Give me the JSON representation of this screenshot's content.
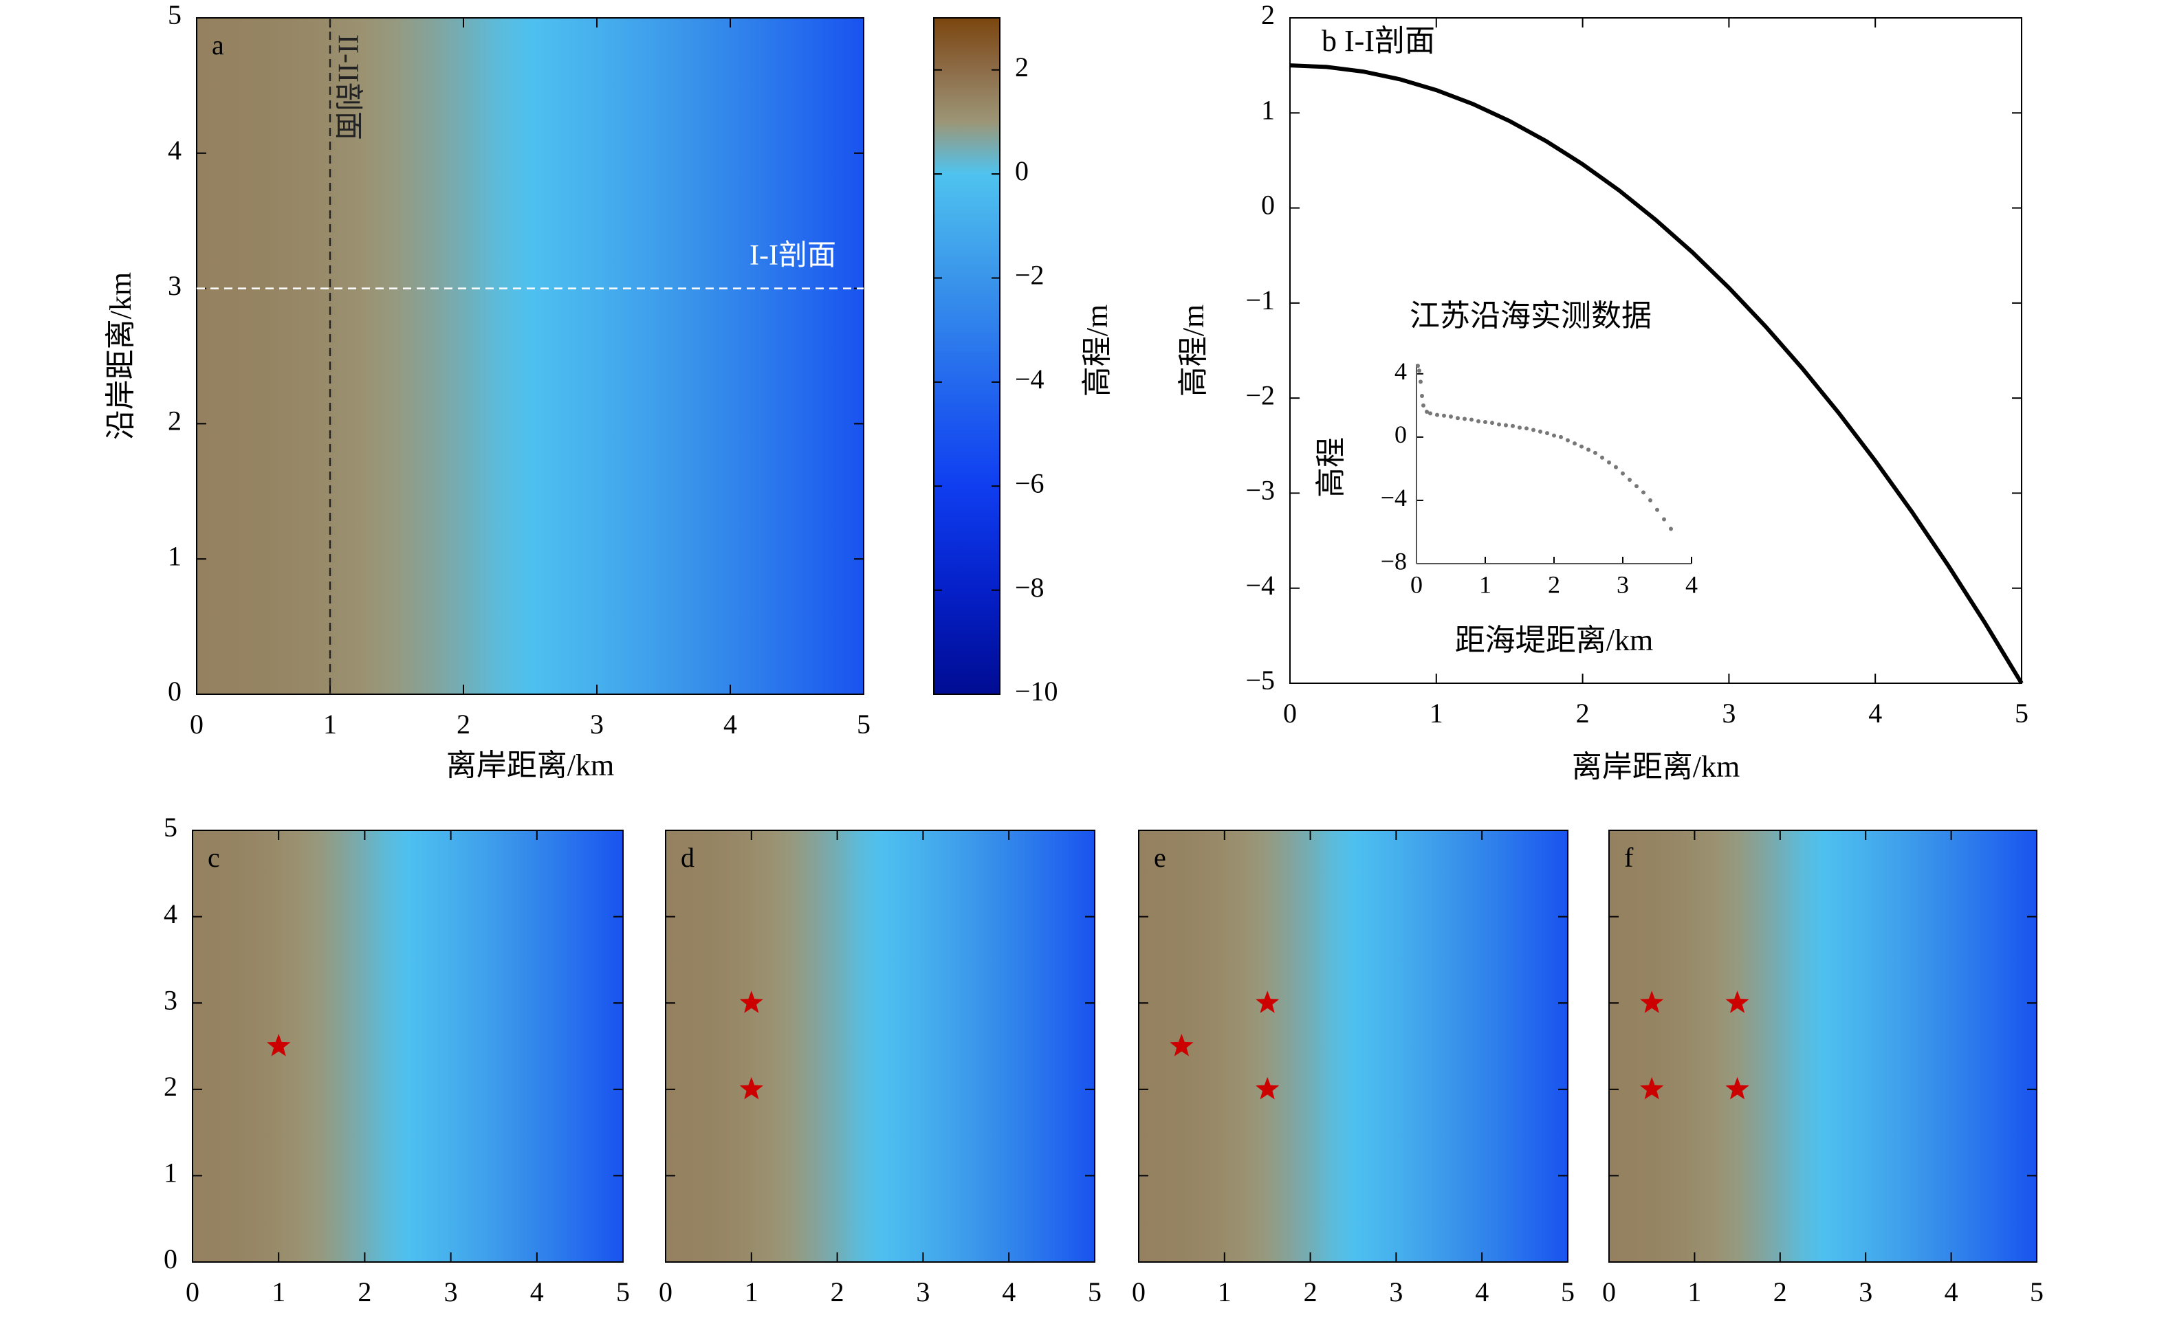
{
  "chart_data": [
    {
      "type": "heatmap",
      "label": "a",
      "xlabel": "离岸距离/km",
      "ylabel": "沿岸距离/km",
      "xlim": [
        0,
        5
      ],
      "ylim": [
        0,
        5
      ],
      "xticks": [
        0,
        1,
        2,
        3,
        4,
        5
      ],
      "yticks": [
        0,
        1,
        2,
        3,
        4,
        5
      ],
      "sections": [
        {
          "label": "II-II剖面",
          "axis": "x",
          "value": 1,
          "color": "#222222"
        },
        {
          "label": "I-I剖面",
          "axis": "y",
          "value": 3,
          "color": "#ffffff"
        }
      ],
      "colorbar": {
        "label": "高程/m",
        "lim": [
          -10,
          3
        ],
        "ticks": [
          2,
          0,
          {
            "value": -2,
            "label": "−2"
          },
          {
            "value": -4,
            "label": "−4"
          },
          {
            "value": -6,
            "label": "−6"
          },
          {
            "value": -8,
            "label": "−8"
          },
          {
            "value": -10,
            "label": "−10"
          }
        ],
        "colormap": [
          {
            "value": 3,
            "color": "#7b460e"
          },
          {
            "value": 2,
            "color": "#8d6c48"
          },
          {
            "value": 1,
            "color": "#9c9676"
          },
          {
            "value": 0,
            "color": "#4fc3ef"
          },
          {
            "value": -2,
            "color": "#3a95ea"
          },
          {
            "value": -4,
            "color": "#2368ee"
          },
          {
            "value": -6,
            "color": "#0f3ef0"
          },
          {
            "value": -8,
            "color": "#0520c8"
          },
          {
            "value": -10,
            "color": "#000c92"
          }
        ]
      }
    },
    {
      "type": "line",
      "title": "b I-I剖面",
      "xlabel": "离岸距离/km",
      "ylabel": "高程/m",
      "xlim": [
        0,
        5
      ],
      "ylim": [
        -5,
        2
      ],
      "xticks": [
        0,
        1,
        2,
        3,
        4,
        5
      ],
      "yticks": [
        {
          "value": -5,
          "label": "−5"
        },
        {
          "value": -4,
          "label": "−4"
        },
        {
          "value": -3,
          "label": "−3"
        },
        {
          "value": -2,
          "label": "−2"
        },
        {
          "value": -1,
          "label": "−1"
        },
        0,
        1,
        2
      ],
      "color": "#000000",
      "x": [
        0,
        0.25,
        0.5,
        0.75,
        1,
        1.25,
        1.5,
        1.75,
        2,
        2.25,
        2.5,
        2.75,
        3,
        3.25,
        3.5,
        3.75,
        4,
        4.25,
        4.5,
        4.75,
        5
      ],
      "values": [
        1.5,
        1.484,
        1.435,
        1.354,
        1.24,
        1.094,
        0.915,
        0.704,
        0.46,
        0.184,
        -0.125,
        -0.466,
        -0.84,
        -1.246,
        -1.685,
        -2.156,
        -2.66,
        -3.196,
        -3.765,
        -4.366,
        -5
      ]
    },
    {
      "type": "scatter",
      "title": "江苏沿海实测数据",
      "xlabel": "距海堤距离/km",
      "ylabel": "高程",
      "frame": "open",
      "xlim": [
        0,
        4
      ],
      "ylim": [
        -8,
        4.6
      ],
      "xticks": [
        0,
        1,
        2,
        3,
        4
      ],
      "yticks": [
        {
          "value": -8,
          "label": "−8"
        },
        {
          "value": -4,
          "label": "−4"
        },
        0,
        4
      ],
      "color": "#777777",
      "x": [
        0.02,
        0.04,
        0.06,
        0.08,
        0.1,
        0.15,
        0.2,
        0.3,
        0.4,
        0.5,
        0.6,
        0.7,
        0.8,
        0.9,
        1.0,
        1.1,
        1.2,
        1.3,
        1.4,
        1.5,
        1.6,
        1.7,
        1.8,
        1.9,
        2.0,
        2.1,
        2.2,
        2.3,
        2.4,
        2.5,
        2.6,
        2.7,
        2.8,
        2.9,
        3.0,
        3.1,
        3.2,
        3.3,
        3.4,
        3.5,
        3.6,
        3.7
      ],
      "values": [
        4.5,
        4.2,
        3.5,
        2.6,
        2.0,
        1.6,
        1.5,
        1.4,
        1.35,
        1.3,
        1.2,
        1.15,
        1.1,
        1.0,
        0.95,
        0.9,
        0.8,
        0.75,
        0.7,
        0.6,
        0.55,
        0.45,
        0.35,
        0.25,
        0.1,
        0,
        -0.2,
        -0.4,
        -0.6,
        -0.8,
        -1.0,
        -1.3,
        -1.6,
        -1.9,
        -2.3,
        -2.7,
        -3.1,
        -3.5,
        -4.0,
        -4.6,
        -5.2,
        -5.8
      ]
    },
    {
      "type": "heatmap",
      "label": "c",
      "xlim": [
        0,
        5
      ],
      "ylim": [
        0,
        5
      ],
      "xticks": [
        0,
        1,
        2,
        3,
        4,
        5
      ],
      "yticks": [
        0,
        1,
        2,
        3,
        4,
        5
      ],
      "marker_color": "#cc0000",
      "points": {
        "x": [
          1
        ],
        "y": [
          2.5
        ]
      }
    },
    {
      "type": "heatmap",
      "label": "d",
      "xlim": [
        0,
        5
      ],
      "ylim": [
        0,
        5
      ],
      "xticks": [
        0,
        1,
        2,
        3,
        4,
        5
      ],
      "yticks": [
        0,
        1,
        2,
        3,
        4,
        5
      ],
      "show_ytick_labels": false,
      "marker_color": "#cc0000",
      "points": {
        "x": [
          1,
          1
        ],
        "y": [
          3,
          2
        ]
      }
    },
    {
      "type": "heatmap",
      "label": "e",
      "xlim": [
        0,
        5
      ],
      "ylim": [
        0,
        5
      ],
      "xticks": [
        0,
        1,
        2,
        3,
        4,
        5
      ],
      "yticks": [
        0,
        1,
        2,
        3,
        4,
        5
      ],
      "show_ytick_labels": false,
      "marker_color": "#cc0000",
      "points": {
        "x": [
          0.5,
          1.5,
          1.5
        ],
        "y": [
          2.5,
          3,
          2
        ]
      }
    },
    {
      "type": "heatmap",
      "label": "f",
      "xlim": [
        0,
        5
      ],
      "ylim": [
        0,
        5
      ],
      "xticks": [
        0,
        1,
        2,
        3,
        4,
        5
      ],
      "yticks": [
        0,
        1,
        2,
        3,
        4,
        5
      ],
      "show_ytick_labels": false,
      "marker_color": "#cc0000",
      "points": {
        "x": [
          0.5,
          1.5,
          0.5,
          1.5
        ],
        "y": [
          3,
          3,
          2,
          2
        ]
      }
    }
  ]
}
